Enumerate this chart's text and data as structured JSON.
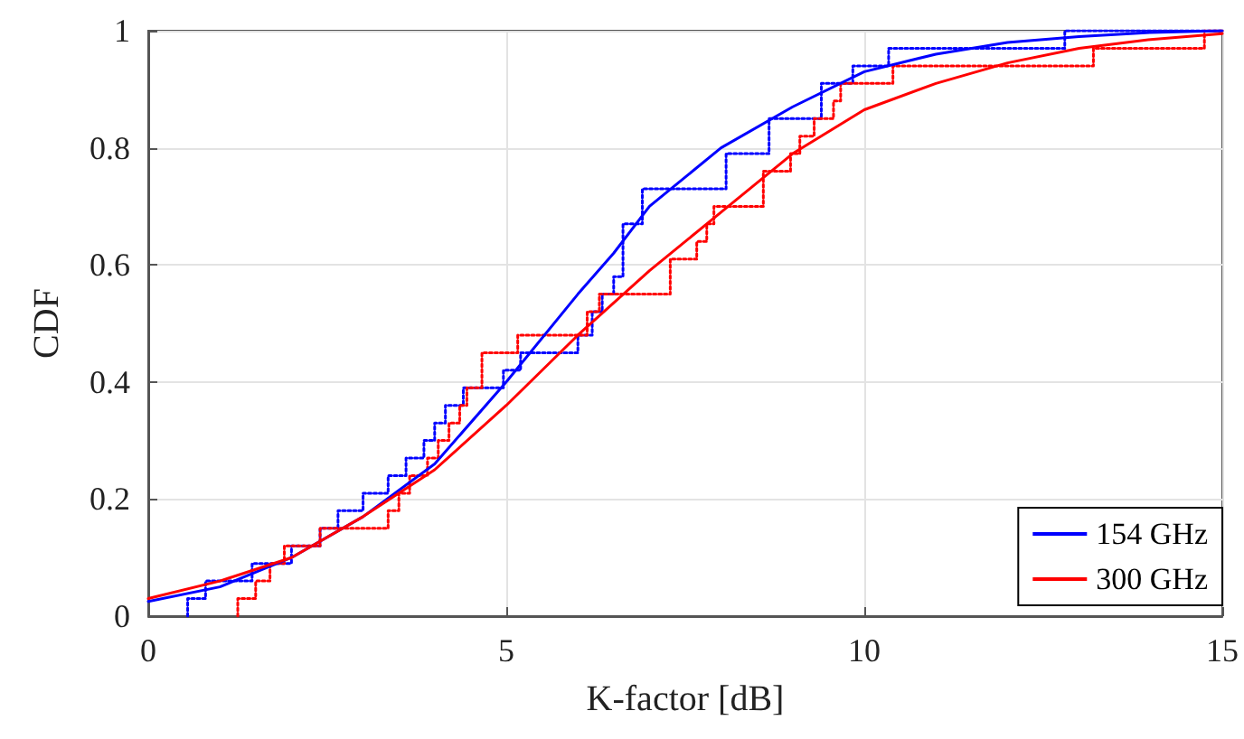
{
  "chart_data": {
    "type": "line",
    "xlabel": "K-factor [dB]",
    "ylabel": "CDF",
    "xlim": [
      0,
      15
    ],
    "xticks": [
      0,
      5,
      10,
      15
    ],
    "ylim": [
      0,
      1
    ],
    "yticks": [
      0,
      0.2,
      0.4,
      0.6,
      0.8,
      1
    ],
    "grid": true,
    "legend": "bottom right",
    "marker": "none",
    "series": [
      {
        "type": "step",
        "color": "#0000ff",
        "line_style": "dotted",
        "x": [
          0.55,
          0.55,
          0.8,
          1.45,
          2.0,
          2.4,
          2.65,
          3.0,
          3.35,
          3.6,
          3.85,
          4.0,
          4.15,
          4.4,
          4.96,
          5.2,
          6.0,
          6.2,
          6.34,
          6.5,
          6.63,
          6.9,
          8.07,
          8.67,
          9.4,
          9.84,
          10.34,
          12.8,
          15
        ],
        "values": [
          0,
          0.03,
          0.06,
          0.09,
          0.12,
          0.15,
          0.18,
          0.21,
          0.24,
          0.27,
          0.3,
          0.33,
          0.36,
          0.39,
          0.42,
          0.45,
          0.48,
          0.52,
          0.55,
          0.58,
          0.67,
          0.73,
          0.79,
          0.85,
          0.91,
          0.94,
          0.97,
          1,
          1
        ]
      },
      {
        "type": "step",
        "color": "#ff0000",
        "line_style": "dotted",
        "x": [
          1.25,
          1.25,
          1.5,
          1.7,
          1.9,
          2.4,
          3.35,
          3.5,
          3.65,
          3.9,
          4.05,
          4.2,
          4.35,
          4.45,
          4.66,
          5.16,
          6.13,
          6.3,
          7.29,
          7.66,
          7.8,
          7.9,
          8.59,
          8.97,
          9.1,
          9.3,
          9.57,
          9.67,
          10.4,
          13.2,
          14.75,
          15
        ],
        "values": [
          0,
          0.03,
          0.06,
          0.09,
          0.12,
          0.15,
          0.18,
          0.21,
          0.24,
          0.27,
          0.3,
          0.33,
          0.36,
          0.39,
          0.45,
          0.48,
          0.52,
          0.55,
          0.61,
          0.64,
          0.67,
          0.7,
          0.76,
          0.79,
          0.82,
          0.85,
          0.88,
          0.91,
          0.94,
          0.97,
          1,
          1
        ]
      },
      {
        "name": "154 GHz",
        "color": "#0000ff",
        "line_style": "solid",
        "x": [
          0,
          1,
          2,
          3,
          4,
          5,
          6,
          6.5,
          7,
          8,
          9,
          10,
          11,
          12,
          13,
          14,
          15
        ],
        "values": [
          0.025,
          0.05,
          0.1,
          0.17,
          0.26,
          0.4,
          0.55,
          0.62,
          0.7,
          0.8,
          0.87,
          0.93,
          0.96,
          0.98,
          0.99,
          0.997,
          1
        ]
      },
      {
        "name": "300 GHz",
        "color": "#ff0000",
        "line_style": "solid",
        "x": [
          0,
          1,
          2,
          3,
          4,
          5,
          6,
          7,
          8,
          9,
          10,
          11,
          12,
          13,
          14,
          15
        ],
        "values": [
          0.03,
          0.06,
          0.1,
          0.17,
          0.25,
          0.36,
          0.48,
          0.59,
          0.69,
          0.79,
          0.865,
          0.91,
          0.945,
          0.97,
          0.985,
          0.995
        ]
      }
    ]
  }
}
